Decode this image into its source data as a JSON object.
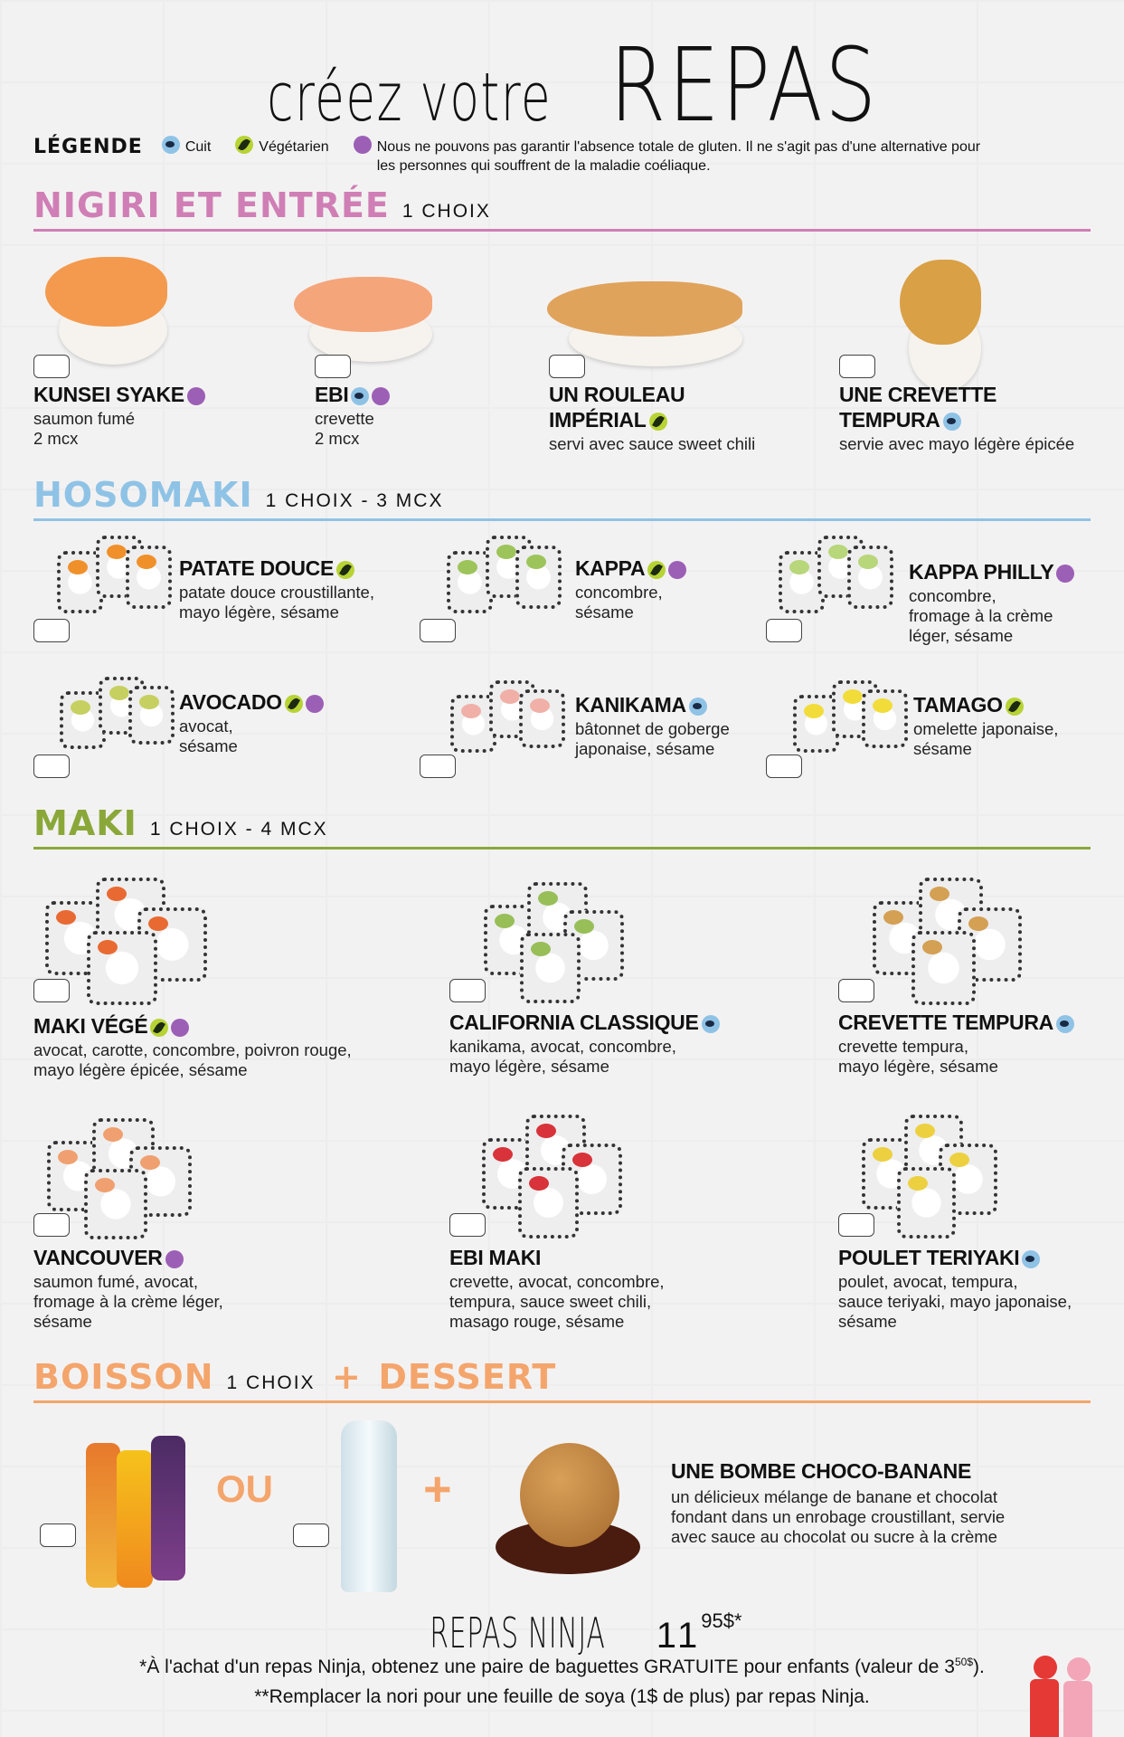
{
  "title": {
    "part1": "créez votre",
    "part2": "REPAS"
  },
  "legend": {
    "label": "LÉGENDE",
    "cuit": "Cuit",
    "vegetarien": "Végétarien",
    "gluten_note": "Nous ne pouvons pas garantir l'absence totale de gluten. Il ne s'agit pas d'une alternative pour les personnes qui souffrent de la maladie coéliaque."
  },
  "colors": {
    "nigiri": "#cf7fb5",
    "hosomaki": "#8fc3e6",
    "maki": "#8aa83a",
    "boisson": "#f4a56c",
    "cuit": "#8fc3e6",
    "vegetarien": "#b7d334",
    "gluten": "#9c5fb6"
  },
  "sections": [
    {
      "title": "NIGIRI ET ENTRÉE",
      "sub": "1 CHOIX",
      "items": [
        {
          "name": "KUNSEI SYAKE",
          "desc": "saumon fumé\n2 mcx",
          "icons": [
            "gluten"
          ]
        },
        {
          "name": "EBI",
          "desc": "crevette\n2 mcx",
          "icons": [
            "cuit",
            "gluten"
          ]
        },
        {
          "name": "UN ROULEAU\nIMPÉRIAL",
          "desc": "servi avec sauce sweet chili",
          "icons": [
            "veg"
          ]
        },
        {
          "name": "UNE CREVETTE\nTEMPURA",
          "desc": "servie avec mayo légère épicée",
          "icons": [
            "cuit"
          ]
        }
      ]
    },
    {
      "title": "HOSOMAKI",
      "sub": "1 CHOIX - 3 MCX",
      "items": [
        {
          "name": "PATATE DOUCE",
          "desc": "patate douce croustillante,\nmayo légère, sésame",
          "icons": [
            "veg"
          ]
        },
        {
          "name": "KAPPA",
          "desc": "concombre,\nsésame",
          "icons": [
            "veg",
            "gluten"
          ]
        },
        {
          "name": "KAPPA PHILLY",
          "desc": "concombre,\nfromage à la crème\nléger, sésame",
          "icons": [
            "gluten"
          ]
        },
        {
          "name": "AVOCADO",
          "desc": "avocat,\nsésame",
          "icons": [
            "veg",
            "gluten"
          ]
        },
        {
          "name": "KANIKAMA",
          "desc": "bâtonnet de goberge\njaponaise, sésame",
          "icons": [
            "cuit"
          ]
        },
        {
          "name": "TAMAGO",
          "desc": "omelette japonaise,\nsésame",
          "icons": [
            "veg"
          ]
        }
      ]
    },
    {
      "title": "MAKI",
      "sub": "1 CHOIX - 4 MCX",
      "items": [
        {
          "name": "MAKI VÉGÉ",
          "desc": "avocat, carotte, concombre, poivron rouge,\nmayo légère épicée, sésame",
          "icons": [
            "veg",
            "gluten"
          ]
        },
        {
          "name": "CALIFORNIA CLASSIQUE",
          "desc": "kanikama, avocat, concombre,\nmayo légère, sésame",
          "icons": [
            "cuit"
          ]
        },
        {
          "name": "CREVETTE TEMPURA",
          "desc": "crevette tempura,\nmayo légère, sésame",
          "icons": [
            "cuit"
          ]
        },
        {
          "name": "VANCOUVER",
          "desc": "saumon fumé, avocat,\nfromage à la crème léger,\nsésame",
          "icons": [
            "gluten"
          ]
        },
        {
          "name": "EBI MAKI",
          "desc": "crevette, avocat, concombre,\ntempura, sauce sweet chili,\nmasago rouge, sésame",
          "icons": []
        },
        {
          "name": "POULET TERIYAKI",
          "desc": "poulet, avocat, tempura,\nsauce teriyaki, mayo japonaise,\nsésame",
          "icons": [
            "cuit"
          ]
        }
      ]
    }
  ],
  "boisson": {
    "title": "BOISSON",
    "sub": "1 CHOIX",
    "plus": "+",
    "dessert_title": "DESSERT",
    "ou": "OU",
    "plus_sign": "+",
    "dessert": {
      "name": "UNE BOMBE CHOCO-BANANE",
      "desc": "un délicieux mélange de banane et chocolat\nfondant dans un enrobage croustillant, servie\navec sauce au chocolat ou sucre à la crème"
    }
  },
  "price": {
    "label": "REPAS NINJA",
    "dollars": "11",
    "cents": "95$*"
  },
  "footnotes": {
    "f1_a": "*À l'achat d'un repas Ninja, obtenez une paire de baguettes GRATUITE pour enfants (valeur de 3",
    "f1_sup": "50$",
    "f1_b": ").",
    "f2": "**Remplacer la nori pour une feuille de soya (1$ de plus) par repas Ninja."
  }
}
